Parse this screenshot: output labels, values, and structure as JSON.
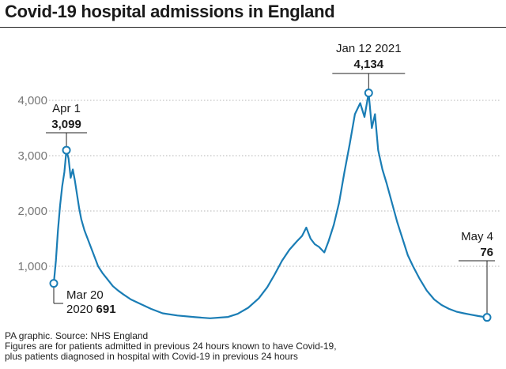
{
  "title": "Covid-19 hospital admissions in England",
  "footer": {
    "source": "PA graphic. Source: NHS England",
    "note_1": "Figures are for patients admitted in previous 24 hours known to have Covid-19,",
    "note_2": "plus patients diagnosed in hospital with Covid-19 in previous 24 hours"
  },
  "colors": {
    "line": "#1a7db5",
    "grid": "#b5b5b5",
    "text": "#1a1a1a",
    "tick": "#777777"
  },
  "chart_data": {
    "type": "line",
    "title": "Covid-19 hospital admissions in England",
    "xlabel": "",
    "ylabel": "",
    "ylim": [
      0,
      4500
    ],
    "yticks": [
      {
        "value": 1000,
        "label": "1,000"
      },
      {
        "value": 2000,
        "label": "2,000"
      },
      {
        "value": 3000,
        "label": "3,000"
      },
      {
        "value": 4000,
        "label": "4,000"
      }
    ],
    "grid": "horizontal dotted",
    "x_range": [
      "2020-03-20",
      "2021-05-04"
    ],
    "series": [
      {
        "points": [
          [
            "2020-03-20",
            691
          ],
          [
            "2020-03-22",
            1100
          ],
          [
            "2020-03-24",
            1650
          ],
          [
            "2020-03-26",
            2100
          ],
          [
            "2020-03-28",
            2450
          ],
          [
            "2020-03-30",
            2700
          ],
          [
            "2020-04-01",
            3099
          ],
          [
            "2020-04-03",
            2950
          ],
          [
            "2020-04-05",
            2600
          ],
          [
            "2020-04-07",
            2750
          ],
          [
            "2020-04-09",
            2550
          ],
          [
            "2020-04-11",
            2300
          ],
          [
            "2020-04-13",
            2050
          ],
          [
            "2020-04-15",
            1850
          ],
          [
            "2020-04-18",
            1650
          ],
          [
            "2020-04-21",
            1500
          ],
          [
            "2020-04-24",
            1350
          ],
          [
            "2020-04-27",
            1200
          ],
          [
            "2020-05-01",
            1000
          ],
          [
            "2020-05-05",
            880
          ],
          [
            "2020-05-10",
            760
          ],
          [
            "2020-05-15",
            640
          ],
          [
            "2020-05-20",
            560
          ],
          [
            "2020-05-25",
            490
          ],
          [
            "2020-06-01",
            400
          ],
          [
            "2020-06-10",
            320
          ],
          [
            "2020-06-20",
            230
          ],
          [
            "2020-07-01",
            150
          ],
          [
            "2020-07-15",
            110
          ],
          [
            "2020-08-01",
            80
          ],
          [
            "2020-08-15",
            60
          ],
          [
            "2020-09-01",
            85
          ],
          [
            "2020-09-10",
            140
          ],
          [
            "2020-09-20",
            250
          ],
          [
            "2020-09-30",
            420
          ],
          [
            "2020-10-08",
            620
          ],
          [
            "2020-10-15",
            850
          ],
          [
            "2020-10-22",
            1100
          ],
          [
            "2020-10-29",
            1300
          ],
          [
            "2020-11-05",
            1450
          ],
          [
            "2020-11-10",
            1550
          ],
          [
            "2020-11-14",
            1700
          ],
          [
            "2020-11-18",
            1500
          ],
          [
            "2020-11-22",
            1400
          ],
          [
            "2020-11-26",
            1350
          ],
          [
            "2020-12-01",
            1250
          ],
          [
            "2020-12-05",
            1450
          ],
          [
            "2020-12-10",
            1750
          ],
          [
            "2020-12-15",
            2150
          ],
          [
            "2020-12-20",
            2700
          ],
          [
            "2020-12-25",
            3200
          ],
          [
            "2020-12-30",
            3750
          ],
          [
            "2021-01-04",
            3950
          ],
          [
            "2021-01-08",
            3700
          ],
          [
            "2021-01-12",
            4134
          ],
          [
            "2021-01-15",
            3500
          ],
          [
            "2021-01-18",
            3750
          ],
          [
            "2021-01-21",
            3100
          ],
          [
            "2021-01-25",
            2750
          ],
          [
            "2021-01-29",
            2500
          ],
          [
            "2021-02-03",
            2150
          ],
          [
            "2021-02-08",
            1800
          ],
          [
            "2021-02-13",
            1500
          ],
          [
            "2021-02-18",
            1200
          ],
          [
            "2021-02-23",
            1000
          ],
          [
            "2021-03-01",
            780
          ],
          [
            "2021-03-08",
            560
          ],
          [
            "2021-03-15",
            400
          ],
          [
            "2021-03-22",
            300
          ],
          [
            "2021-03-29",
            230
          ],
          [
            "2021-04-05",
            180
          ],
          [
            "2021-04-12",
            150
          ],
          [
            "2021-04-19",
            125
          ],
          [
            "2021-04-26",
            100
          ],
          [
            "2021-05-04",
            76
          ]
        ]
      }
    ],
    "annotations": [
      {
        "date": "2020-03-20",
        "value": 691,
        "label_line1": "Mar 20",
        "label_line2a": "2020 ",
        "label_line2b": "691"
      },
      {
        "date": "2020-04-01",
        "value": 3099,
        "label_line1": "Apr 1",
        "label_value": "3,099"
      },
      {
        "date": "2021-01-12",
        "value": 4134,
        "label_line1": "Jan 12 2021",
        "label_value": "4,134"
      },
      {
        "date": "2021-05-04",
        "value": 76,
        "label_line1": "May 4",
        "label_value": "76"
      }
    ]
  }
}
